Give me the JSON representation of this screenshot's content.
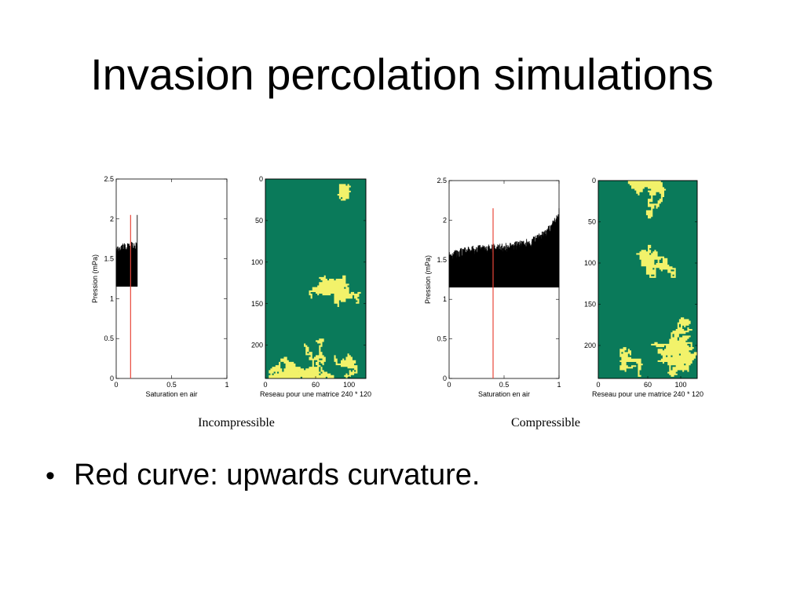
{
  "slide": {
    "title": "Invasion percolation simulations",
    "bullets": [
      "Red curve: upwards curvature."
    ]
  },
  "colors": {
    "cluster": "#f2f26a",
    "background_field": "#0a7a5a",
    "trace": "#000000",
    "marker": "#e8473a"
  },
  "chart_data": [
    {
      "type": "line",
      "caption": "Incompressible",
      "xlabel": "Saturation en air",
      "ylabel": "Pression (mPa)",
      "xlim": [
        0,
        1
      ],
      "ylim": [
        0,
        2.5
      ],
      "xticks": [
        "0",
        "0.5",
        "1"
      ],
      "yticks": [
        "0",
        "0.5",
        "1",
        "1.5",
        "2",
        "2.5"
      ],
      "grid": false,
      "series": [
        {
          "kind": "pressure-trace",
          "saturation_range": [
            0,
            0.19
          ],
          "pressure_min": 1.15,
          "pressure_max": [
            1.65,
            1.68,
            1.7,
            1.7,
            1.72,
            1.75
          ],
          "final_peak": 2.05
        },
        {
          "kind": "marker",
          "x": [
            0.13,
            0.13
          ],
          "y": [
            0,
            2.05
          ]
        }
      ]
    },
    {
      "type": "heatmap",
      "xlabel": "Reseau pour une matrice 240 * 120",
      "ylabel": "",
      "xlim": [
        0,
        120
      ],
      "ylim": [
        240,
        0
      ],
      "xticks": [
        "0",
        "60",
        "100"
      ],
      "yticks": [
        "0",
        "50",
        "100",
        "150",
        "200"
      ],
      "values": [
        "invaded",
        "uninvaded"
      ]
    },
    {
      "type": "line",
      "caption": "Compressible",
      "xlabel": "Saturation en air",
      "ylabel": "Pression (mPa)",
      "xlim": [
        0,
        1
      ],
      "ylim": [
        0,
        2.5
      ],
      "xticks": [
        "0",
        "0.5",
        "1"
      ],
      "yticks": [
        "0",
        "0.5",
        "1",
        "1.5",
        "2",
        "2.5"
      ],
      "grid": false,
      "series": [
        {
          "kind": "pressure-trace",
          "saturation_range": [
            0,
            1
          ],
          "pressure_min": 1.15,
          "pressure_max": [
            1.6,
            1.65,
            1.68,
            1.7,
            1.7,
            1.72,
            1.75,
            1.8,
            1.9,
            2.1
          ],
          "final_peak": 2.15
        },
        {
          "kind": "marker",
          "x": [
            0.4,
            0.4
          ],
          "y": [
            0,
            2.15
          ]
        }
      ]
    },
    {
      "type": "heatmap",
      "xlabel": "Reseau pour une matrice 240 * 120",
      "ylabel": "",
      "xlim": [
        0,
        120
      ],
      "ylim": [
        240,
        0
      ],
      "xticks": [
        "0",
        "60",
        "100"
      ],
      "yticks": [
        "0",
        "50",
        "100",
        "150",
        "200"
      ],
      "values": [
        "invaded",
        "uninvaded"
      ]
    }
  ]
}
